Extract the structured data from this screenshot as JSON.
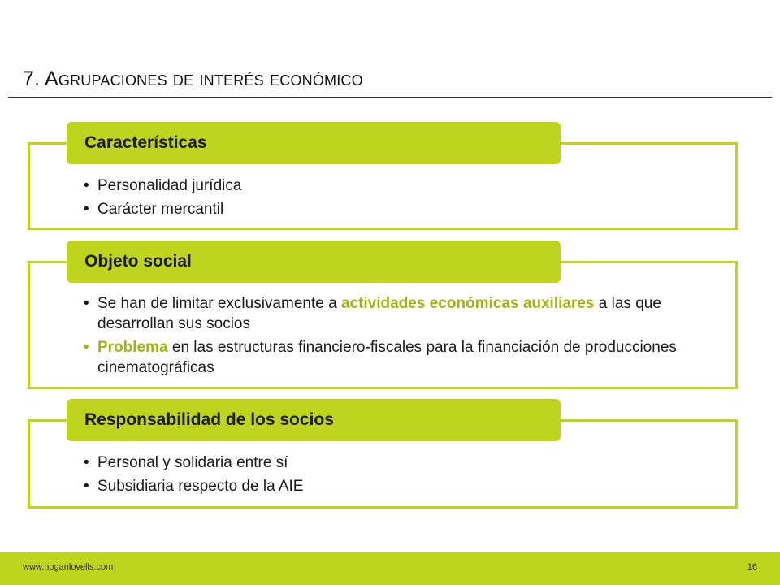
{
  "slide": {
    "title": "7. Agrupaciones de interés económico"
  },
  "sections": [
    {
      "header": "Características",
      "bullets": [
        "Personalidad jurídica",
        "Carácter mercantil"
      ]
    },
    {
      "header": "Objeto social",
      "bullet1": {
        "pre": "Se han de limitar exclusivamente a ",
        "highlight": "actividades económicas auxiliares",
        "post": " a las que desarrollan sus socios"
      },
      "bullet2": {
        "highlight": "Problema",
        "post": " en las estructuras financiero-fiscales para la financiación de producciones cinematográficas"
      }
    },
    {
      "header": "Responsabilidad de los socios",
      "bullets": [
        "Personal y solidaria entre sí",
        "Subsidiaria respecto de la AIE"
      ]
    }
  ],
  "footer": {
    "url": "www.hoganlovells.com",
    "page": "16"
  },
  "colors": {
    "accent": "#bfd41c",
    "highlight_text": "#9bb513"
  }
}
